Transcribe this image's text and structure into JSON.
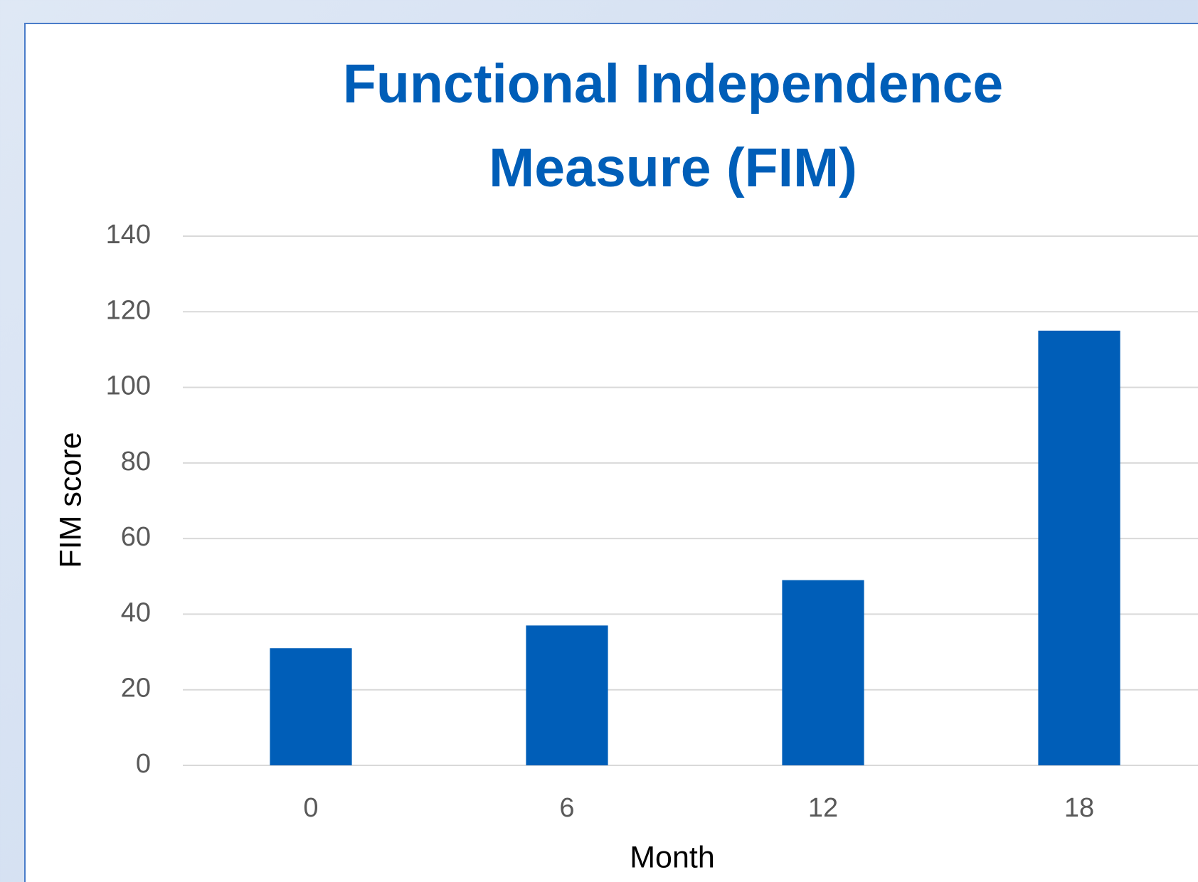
{
  "chart_data": {
    "type": "bar",
    "title": "Functional Independence Measure (FIM)",
    "x_label": "Month",
    "y_label": "FIM score",
    "categories": [
      "0",
      "6",
      "12",
      "18"
    ],
    "values": [
      31,
      37,
      49,
      115
    ],
    "color": "#005eb8",
    "ylim": [
      0,
      140
    ],
    "yticks": [
      0,
      20,
      40,
      60,
      80,
      100,
      120,
      140
    ],
    "grid": true
  }
}
